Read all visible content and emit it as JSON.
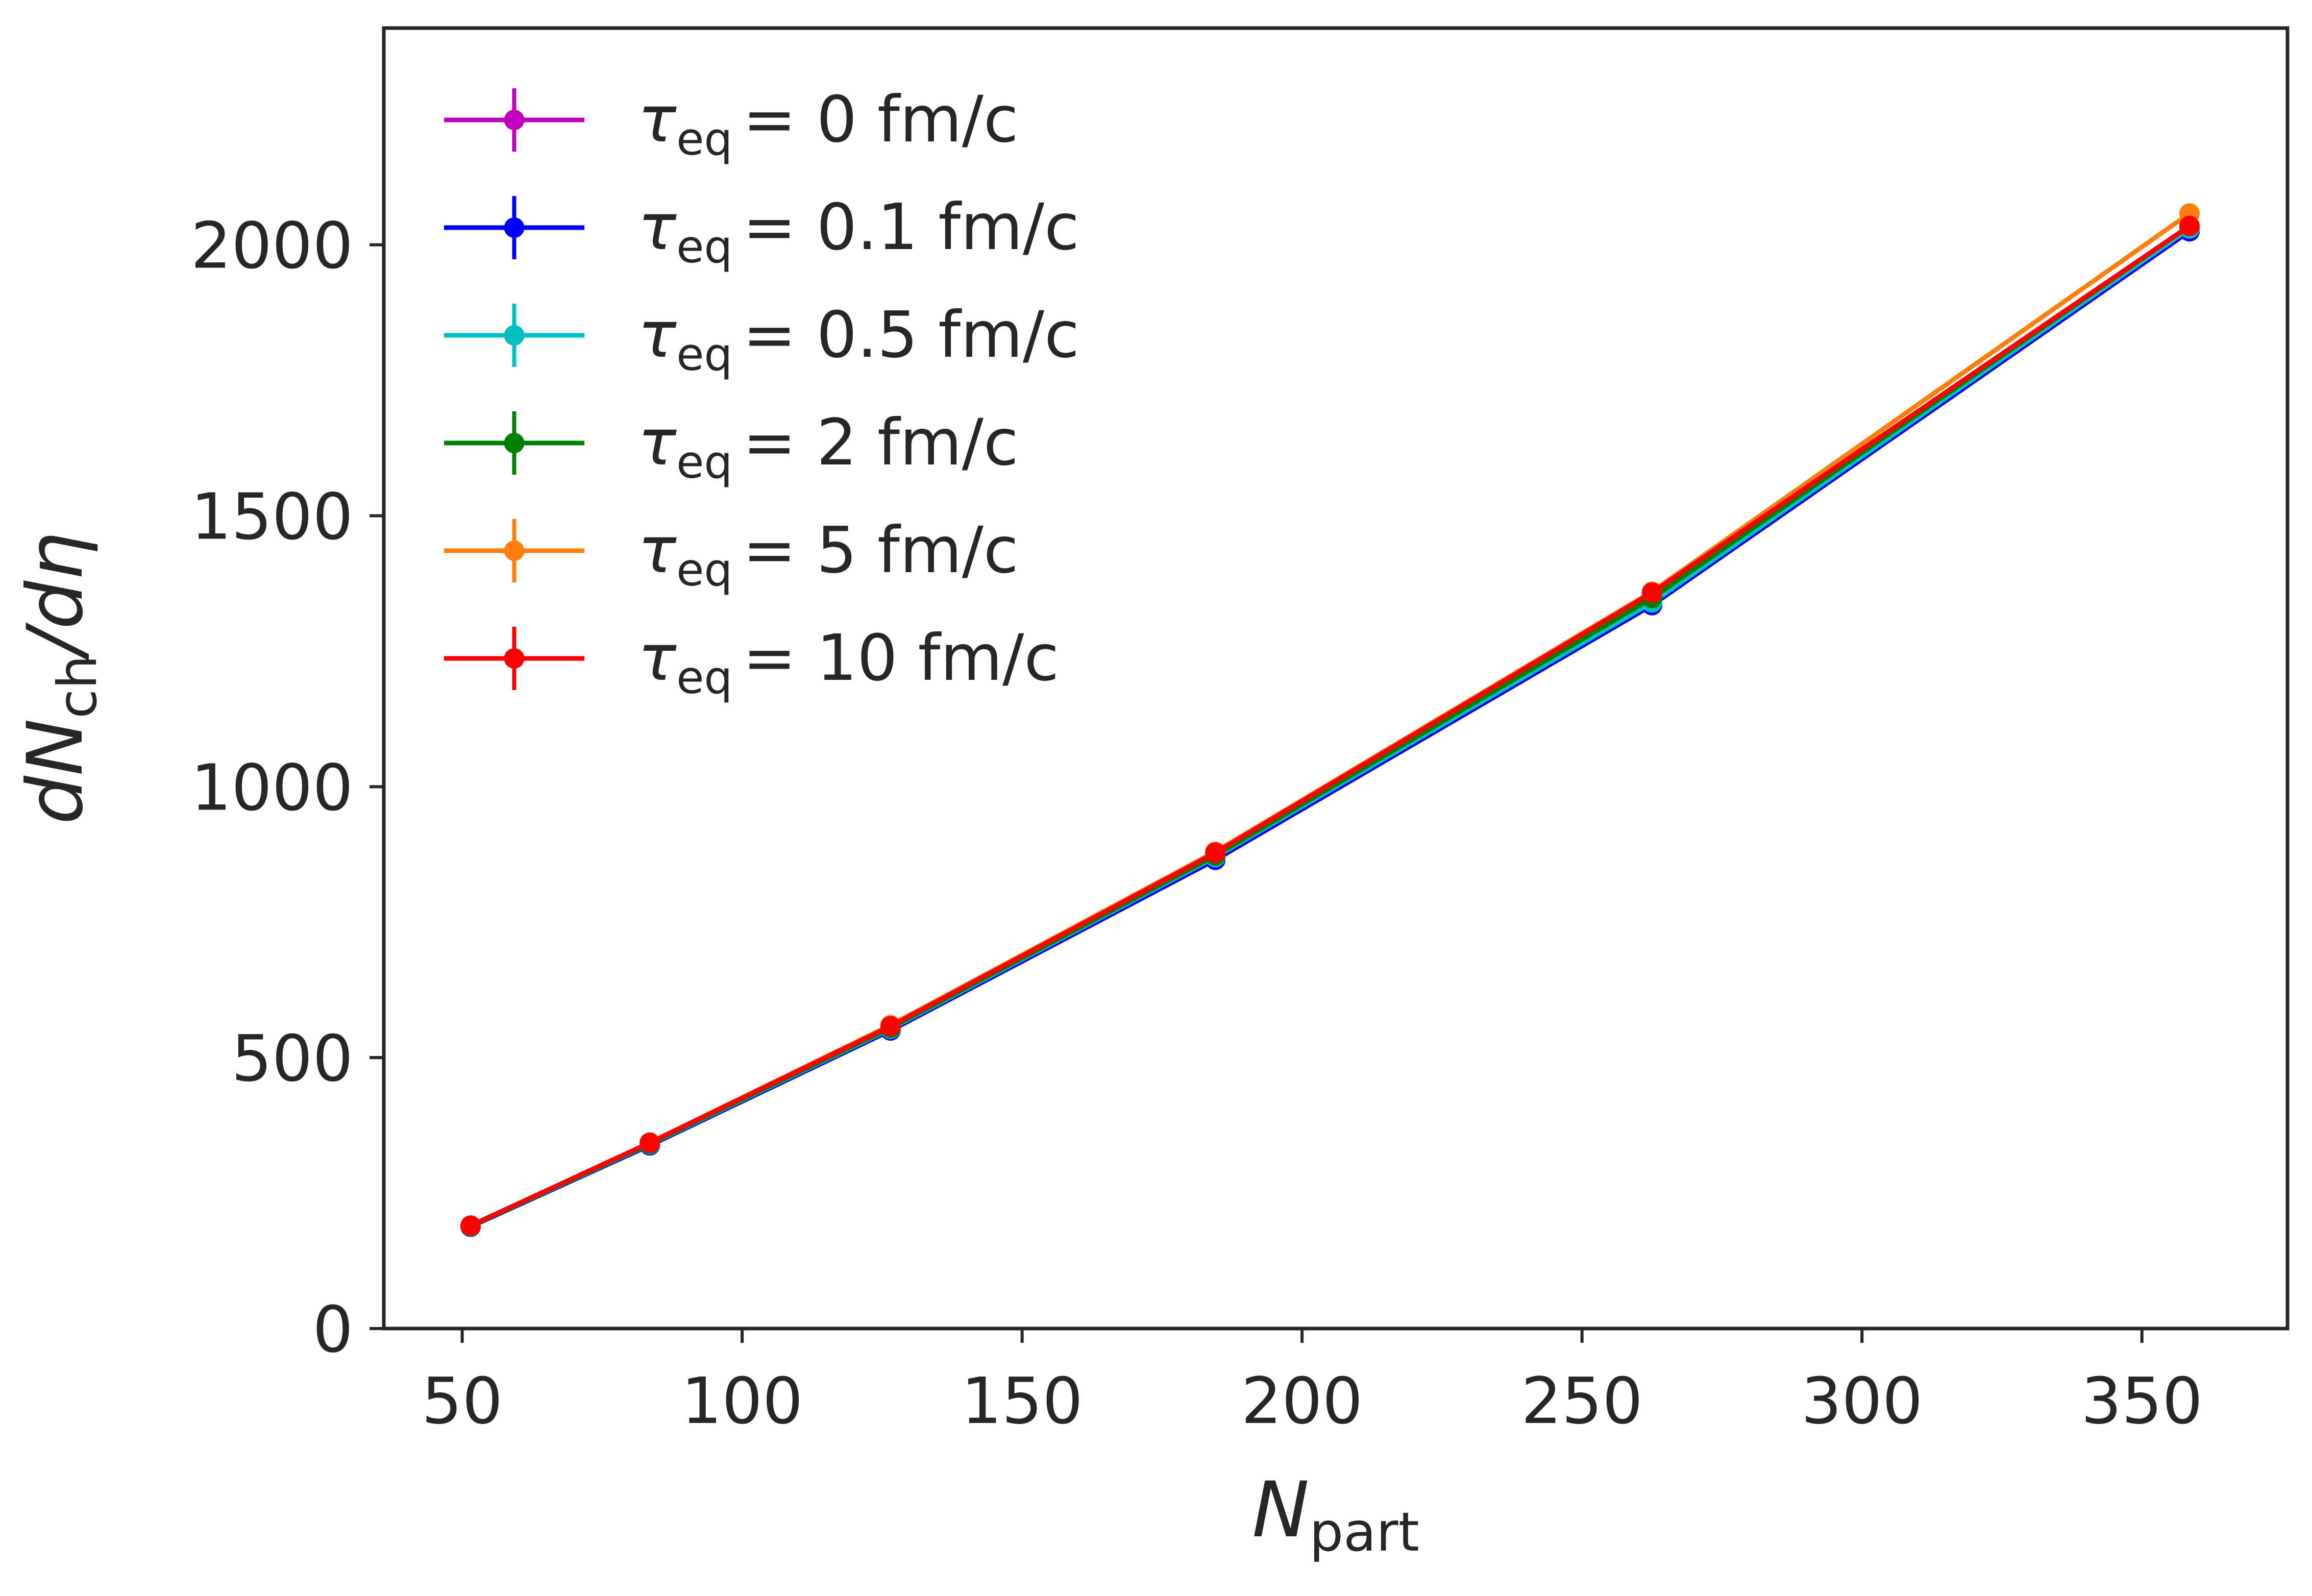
{
  "chart_data": {
    "type": "line",
    "title": "",
    "xlabel": {
      "main": "N",
      "sub": "part"
    },
    "ylabel": {
      "pre": "dN",
      "sub": "ch",
      "post": "/dη"
    },
    "xlim": [
      36,
      376
    ],
    "ylim": [
      0,
      2400
    ],
    "xticks": [
      50,
      100,
      150,
      200,
      250,
      300,
      350
    ],
    "yticks": [
      0,
      500,
      1000,
      1500,
      2000
    ],
    "xtick_labels": [
      "50",
      "100",
      "150",
      "200",
      "250",
      "300",
      "350"
    ],
    "ytick_labels": [
      "0",
      "500",
      "1000",
      "1500",
      "2000"
    ],
    "grid": false,
    "legend_position": "top-left",
    "x": [
      51.5,
      83.5,
      126.5,
      184.5,
      262.5,
      358.5
    ],
    "series": [
      {
        "name": "τeq = 0 fm/c",
        "var": "τ",
        "sub": "eq",
        "value_text": "= 0 fm/c",
        "color": "#bf00bf",
        "values": [
          188,
          338,
          550,
          865,
          1335,
          2025
        ]
      },
      {
        "name": "τeq = 0.1 fm/c",
        "var": "τ",
        "sub": "eq",
        "value_text": "= 0.1 fm/c",
        "color": "#0000ff",
        "values": [
          188,
          338,
          550,
          865,
          1335,
          2025
        ]
      },
      {
        "name": "τeq = 0.5 fm/c",
        "var": "τ",
        "sub": "eq",
        "value_text": "= 0.5 fm/c",
        "color": "#00bfbf",
        "values": [
          189,
          340,
          553,
          870,
          1340,
          2030
        ]
      },
      {
        "name": "τeq = 2 fm/c",
        "var": "τ",
        "sub": "eq",
        "value_text": "= 2 fm/c",
        "color": "#008000",
        "values": [
          189,
          341,
          555,
          873,
          1348,
          2035
        ]
      },
      {
        "name": "τeq = 5 fm/c",
        "var": "τ",
        "sub": "eq",
        "value_text": "= 5 fm/c",
        "color": "#ff7f0e",
        "values": [
          190,
          343,
          560,
          880,
          1360,
          2058
        ]
      },
      {
        "name": "τeq = 10 fm/c",
        "var": "τ",
        "sub": "eq",
        "value_text": "= 10 fm/c",
        "color": "#ff0000",
        "values": [
          190,
          343,
          558,
          878,
          1358,
          2035
        ]
      }
    ]
  }
}
